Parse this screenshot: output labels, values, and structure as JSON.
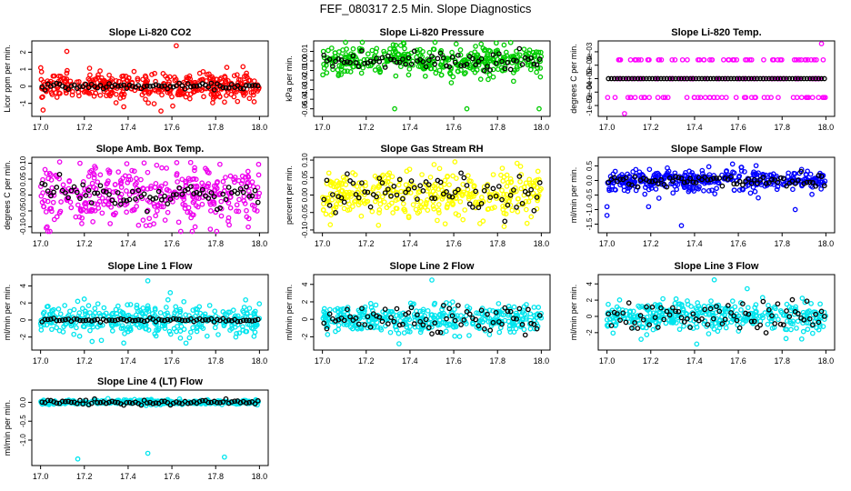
{
  "figure": {
    "title": "FEF_080317  2.5 Min. Slope Diagnostics"
  },
  "chart_data": [
    {
      "type": "scatter",
      "title": "Slope Li-820 CO2",
      "ylabel": "Licor ppm per min.",
      "xlim": [
        17.0,
        18.0
      ],
      "xticks": [
        17.0,
        17.2,
        17.4,
        17.6,
        17.8,
        18.0
      ],
      "ylim": [
        -1.6,
        2.5
      ],
      "yticks": [
        -1,
        0,
        1,
        2
      ],
      "yticklabels": [
        "-1",
        "0",
        "1",
        "2"
      ],
      "point_color": "#ff0000",
      "spread": 0.4,
      "outliers": [
        [
          17.12,
          2.05
        ],
        [
          17.62,
          2.38
        ],
        [
          17.38,
          -1.2
        ],
        [
          17.55,
          -1.45
        ]
      ],
      "black_spread": 0.08
    },
    {
      "type": "scatter",
      "title": "Slope Li-820 Pressure",
      "ylabel": "kPa per min.",
      "xlim": [
        17.0,
        18.0
      ],
      "xticks": [
        17.0,
        17.2,
        17.4,
        17.6,
        17.8,
        18.0
      ],
      "ylim": [
        -0.055,
        0.018
      ],
      "yticks": [
        -0.05,
        -0.04,
        -0.03,
        -0.02,
        -0.01,
        0.0,
        0.01
      ],
      "yticklabels": [
        "-0.05",
        "-0.04",
        "-0.03",
        "-0.02",
        "-0.01",
        "0.00",
        "0.01"
      ],
      "point_color": "#00cc00",
      "spread": 0.008,
      "outliers": [
        [
          17.33,
          -0.05
        ],
        [
          17.66,
          -0.05
        ],
        [
          17.99,
          -0.05
        ]
      ],
      "black_spread": 0.006
    },
    {
      "type": "scatter",
      "title": "Slope Li-820 Temp.",
      "ylabel": "degrees C per min.",
      "xlim": [
        17.0,
        18.0
      ],
      "xticks": [
        17.0,
        17.2,
        17.4,
        17.6,
        17.8,
        18.0
      ],
      "ylim": [
        -0.0013,
        0.0013
      ],
      "yticks": [
        -0.001,
        -0.0005,
        0.0,
        0.0005,
        0.001
      ],
      "yticklabels": [
        "-1e-03",
        "-5e-04",
        "0e+00",
        "5e-04",
        "1e-03"
      ],
      "point_color": "#ff00ff",
      "levels": [
        0.0007,
        0.0,
        -0.0007
      ],
      "outliers": [
        [
          17.98,
          0.0013
        ],
        [
          17.08,
          -0.0013
        ]
      ],
      "black_spread": 0.0
    },
    {
      "type": "scatter",
      "title": "Slope Amb. Box Temp.",
      "ylabel": "degrees C per min.",
      "xlim": [
        17.0,
        18.0
      ],
      "xticks": [
        17.0,
        17.2,
        17.4,
        17.6,
        17.8,
        18.0
      ],
      "ylim": [
        -0.11,
        0.11
      ],
      "yticks": [
        -0.1,
        -0.05,
        0.0,
        0.05,
        0.1
      ],
      "yticklabels": [
        "-0.10",
        "-0.05",
        "0.00",
        "0.05",
        "0.10"
      ],
      "point_color": "#ee00ee",
      "spread": 0.045,
      "outliers": [
        [
          17.18,
          0.1
        ],
        [
          17.03,
          -0.1
        ]
      ],
      "black_spread": 0.02
    },
    {
      "type": "scatter",
      "title": "Slope Gas Stream RH",
      "ylabel": "percent per min.",
      "xlim": [
        17.0,
        18.0
      ],
      "xticks": [
        17.0,
        17.2,
        17.4,
        17.6,
        17.8,
        18.0
      ],
      "ylim": [
        -0.1,
        0.1
      ],
      "yticks": [
        -0.1,
        -0.05,
        0.0,
        0.05,
        0.1
      ],
      "yticklabels": [
        "-0.10",
        "-0.05",
        "0.00",
        "0.05",
        "0.10"
      ],
      "point_color": "#ffff00",
      "spread": 0.035,
      "outliers": [
        [
          17.83,
          -0.09
        ]
      ],
      "black_spread": 0.025
    },
    {
      "type": "scatter",
      "title": "Slope Sample Flow",
      "ylabel": "ml/min per min.",
      "xlim": [
        17.0,
        18.0
      ],
      "xticks": [
        17.0,
        17.2,
        17.4,
        17.6,
        17.8,
        18.0
      ],
      "ylim": [
        -1.7,
        0.7
      ],
      "yticks": [
        -1.5,
        -1.0,
        -0.5,
        0.0,
        0.5
      ],
      "yticklabels": [
        "-1.5",
        "-1.0",
        "-0.5",
        "0.0",
        "0.5"
      ],
      "point_color": "#0000ff",
      "spread": 0.18,
      "outliers": [
        [
          17.34,
          -1.55
        ],
        [
          17.0,
          -1.2
        ],
        [
          17.86,
          -1.0
        ],
        [
          17.0,
          -0.9
        ],
        [
          17.19,
          -0.9
        ]
      ],
      "black_spread": 0.12
    },
    {
      "type": "scatter",
      "title": "Slope Line 1 Flow",
      "ylabel": "ml/min per min.",
      "xlim": [
        17.0,
        18.0
      ],
      "xticks": [
        17.0,
        17.2,
        17.4,
        17.6,
        17.8,
        18.0
      ],
      "ylim": [
        -3.2,
        5.0
      ],
      "yticks": [
        -2,
        0,
        2,
        4
      ],
      "yticklabels": [
        "-2",
        "0",
        "2",
        "4"
      ],
      "point_color": "#00e5ee",
      "spread": 0.9,
      "outliers": [
        [
          17.49,
          4.6
        ],
        [
          17.38,
          -2.7
        ]
      ],
      "black_spread": 0.1
    },
    {
      "type": "scatter",
      "title": "Slope Line 2 Flow",
      "ylabel": "ml/min per min.",
      "xlim": [
        17.0,
        18.0
      ],
      "xticks": [
        17.0,
        17.2,
        17.4,
        17.6,
        17.8,
        18.0
      ],
      "ylim": [
        -3.2,
        4.8
      ],
      "yticks": [
        -2,
        0,
        2,
        4
      ],
      "yticklabels": [
        "-2",
        "0",
        "2",
        "4"
      ],
      "point_color": "#00e5ee",
      "spread": 0.8,
      "outliers": [
        [
          17.5,
          4.5
        ],
        [
          17.35,
          -2.8
        ]
      ],
      "black_spread": 0.9
    },
    {
      "type": "scatter",
      "title": "Slope Line 3 Flow",
      "ylabel": "ml/min per min.",
      "xlim": [
        17.0,
        18.0
      ],
      "xticks": [
        17.0,
        17.2,
        17.4,
        17.6,
        17.8,
        18.0
      ],
      "ylim": [
        -3.8,
        4.8
      ],
      "yticks": [
        -2,
        0,
        2,
        4
      ],
      "yticklabels": [
        "-2",
        "0",
        "2",
        "4"
      ],
      "point_color": "#00e5ee",
      "spread": 0.9,
      "outliers": [
        [
          17.49,
          4.5
        ],
        [
          17.41,
          -3.4
        ]
      ],
      "black_spread": 0.9
    },
    {
      "type": "scatter",
      "title": "Slope Line 4 (LT) Flow",
      "ylabel": "ml/min per min.",
      "xlim": [
        17.0,
        18.0
      ],
      "xticks": [
        17.0,
        17.2,
        17.4,
        17.6,
        17.8,
        18.0
      ],
      "ylim": [
        -1.6,
        0.25
      ],
      "yticks": [
        -1.0,
        -0.5,
        0.0
      ],
      "yticklabels": [
        "-1.0",
        "-0.5",
        "0.0"
      ],
      "point_color": "#00e5ee",
      "spread": 0.03,
      "outliers": [
        [
          17.49,
          -1.35
        ],
        [
          17.17,
          -1.5
        ],
        [
          17.84,
          -1.45
        ]
      ],
      "black_spread": 0.04
    }
  ]
}
